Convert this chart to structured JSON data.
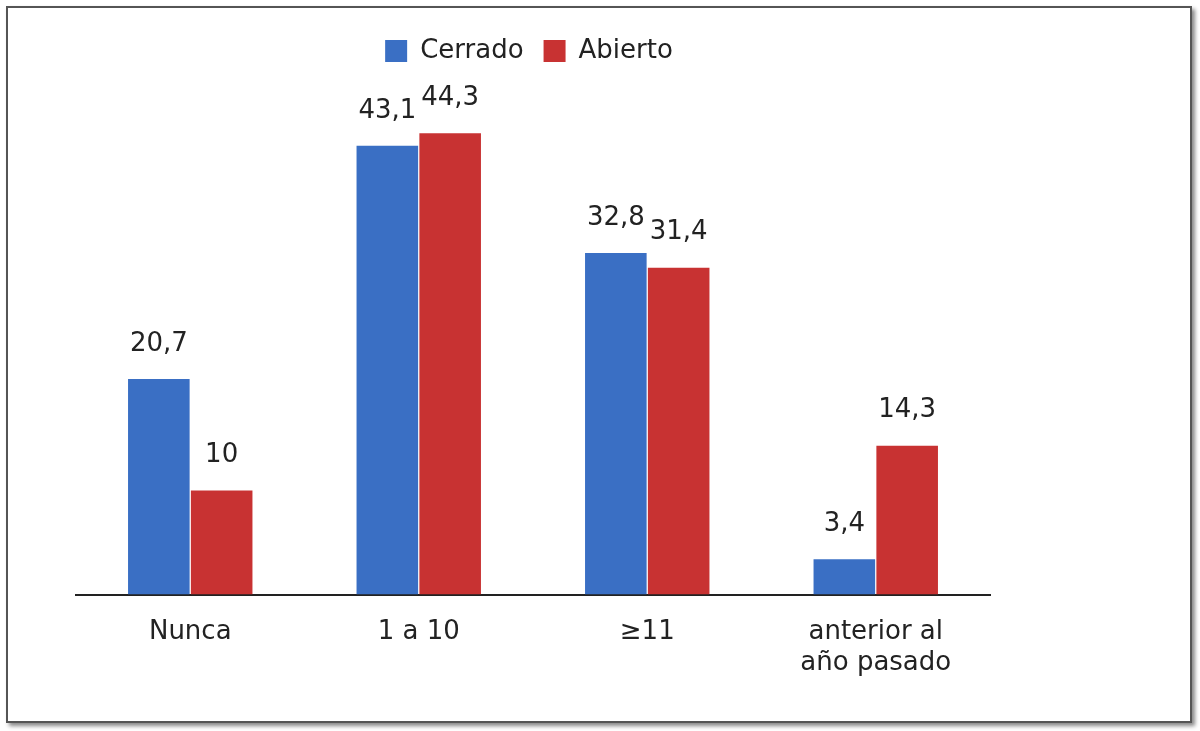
{
  "chart_data": {
    "type": "bar",
    "categories": [
      "Nunca",
      "1 a 10",
      "≥11",
      "anterior al año pasado"
    ],
    "series": [
      {
        "name": "Cerrado",
        "color": "#3a6fc4",
        "values": [
          20.7,
          43.1,
          32.8,
          3.4
        ],
        "value_labels": [
          "20,7",
          "43,1",
          "32,8",
          "3,4"
        ]
      },
      {
        "name": "Abierto",
        "color": "#c83232",
        "values": [
          10,
          44.3,
          31.4,
          14.3
        ],
        "value_labels": [
          "10",
          "44,3",
          "31,4",
          "14,3"
        ]
      }
    ],
    "legend": "top",
    "grid": false,
    "tick_labels": "x"
  }
}
